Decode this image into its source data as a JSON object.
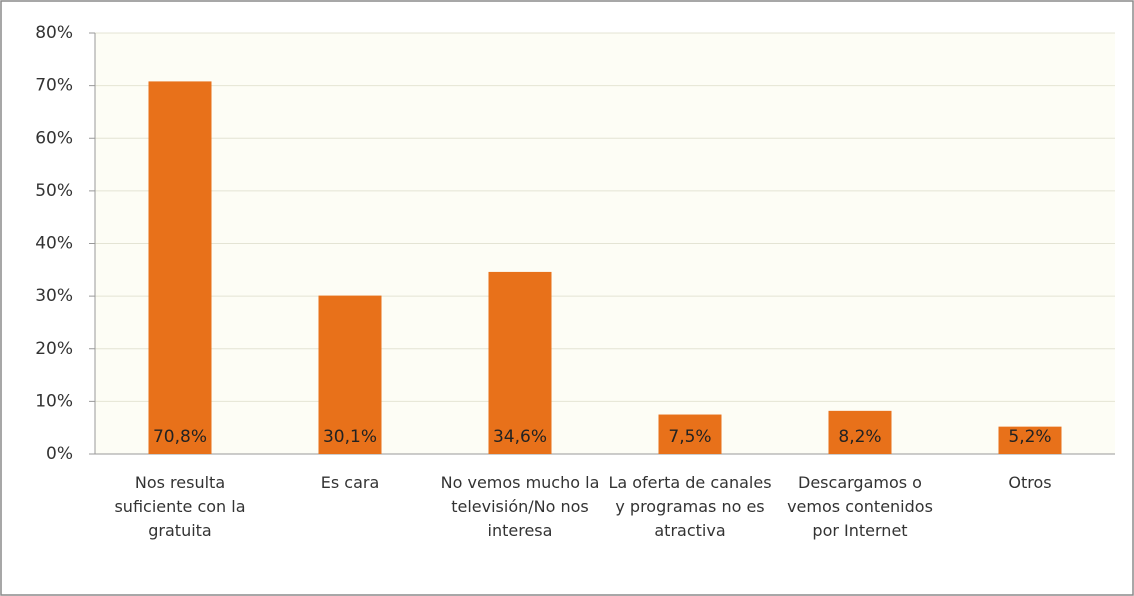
{
  "chart_data": {
    "type": "bar",
    "categories": [
      "Nos resulta suficiente con la gratuita",
      "Es cara",
      "No vemos mucho la televisión/No nos interesa",
      "La oferta de canales y programas no es atractiva",
      "Descargamos o vemos contenidos por Internet",
      "Otros"
    ],
    "values": [
      70.8,
      30.1,
      34.6,
      7.5,
      8.2,
      5.2
    ],
    "value_labels": [
      "70,8%",
      "30,1%",
      "34,6%",
      "7,5%",
      "8,2%",
      "5,2%"
    ],
    "color": "#e8711a",
    "ylim": [
      0,
      80
    ],
    "yticks": [
      {
        "value": 0,
        "label": "0%"
      },
      {
        "value": 10,
        "label": "10%"
      },
      {
        "value": 20,
        "label": "20%"
      },
      {
        "value": 30,
        "label": "30%"
      },
      {
        "value": 40,
        "label": "40%"
      },
      {
        "value": 50,
        "label": "50%"
      },
      {
        "value": 60,
        "label": "60%"
      },
      {
        "value": 70,
        "label": "70%"
      },
      {
        "value": 80,
        "label": "80%"
      }
    ],
    "grid": true
  }
}
